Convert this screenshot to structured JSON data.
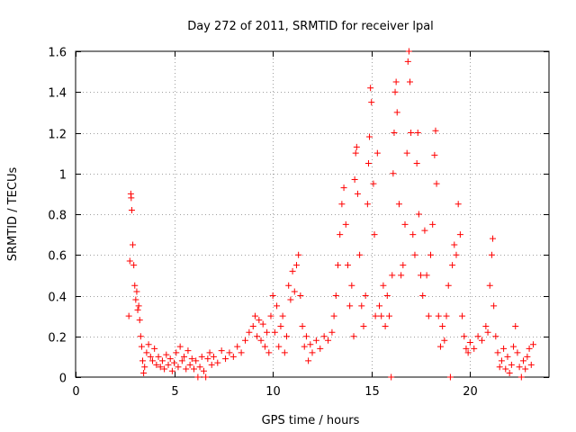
{
  "chart_data": {
    "type": "scatter",
    "title": "Day 272 of 2011, SRMTID for receiver lpal",
    "xlabel": "GPS time / hours",
    "ylabel": "SRMTID / TECUs",
    "xlim": [
      0,
      24
    ],
    "ylim": [
      0,
      1.6
    ],
    "x_ticks": [
      0,
      5,
      10,
      15,
      20
    ],
    "x_tick_labels": [
      "0",
      "5",
      "10",
      "15",
      "20"
    ],
    "y_ticks": [
      0,
      0.2,
      0.4,
      0.6,
      0.8,
      1.0,
      1.2,
      1.4,
      1.6
    ],
    "y_tick_labels": [
      "0",
      "0.2",
      "0.4",
      "0.6",
      "0.8",
      "1",
      "1.2",
      "1.4",
      "1.6"
    ],
    "grid": true,
    "marker": "+",
    "series": [
      {
        "name": "SRMTID",
        "color": "#ff0000",
        "points": [
          [
            2.7,
            0.3
          ],
          [
            2.75,
            0.57
          ],
          [
            2.8,
            0.9
          ],
          [
            2.82,
            0.88
          ],
          [
            2.85,
            0.82
          ],
          [
            2.9,
            0.65
          ],
          [
            2.95,
            0.55
          ],
          [
            3.0,
            0.45
          ],
          [
            3.05,
            0.38
          ],
          [
            3.1,
            0.42
          ],
          [
            3.15,
            0.33
          ],
          [
            3.2,
            0.35
          ],
          [
            3.25,
            0.28
          ],
          [
            3.3,
            0.2
          ],
          [
            3.35,
            0.15
          ],
          [
            3.4,
            0.08
          ],
          [
            3.45,
            0.02
          ],
          [
            3.5,
            0.05
          ],
          [
            3.6,
            0.12
          ],
          [
            3.7,
            0.16
          ],
          [
            3.8,
            0.1
          ],
          [
            3.9,
            0.08
          ],
          [
            4.0,
            0.14
          ],
          [
            4.1,
            0.06
          ],
          [
            4.2,
            0.1
          ],
          [
            4.3,
            0.05
          ],
          [
            4.4,
            0.08
          ],
          [
            4.5,
            0.04
          ],
          [
            4.6,
            0.11
          ],
          [
            4.7,
            0.06
          ],
          [
            4.8,
            0.09
          ],
          [
            4.9,
            0.03
          ],
          [
            5.0,
            0.07
          ],
          [
            5.1,
            0.12
          ],
          [
            5.2,
            0.05
          ],
          [
            5.3,
            0.15
          ],
          [
            5.4,
            0.08
          ],
          [
            5.5,
            0.1
          ],
          [
            5.6,
            0.04
          ],
          [
            5.7,
            0.13
          ],
          [
            5.8,
            0.06
          ],
          [
            5.9,
            0.09
          ],
          [
            6.0,
            0.04
          ],
          [
            6.1,
            0.08
          ],
          [
            6.2,
            0.0
          ],
          [
            6.3,
            0.05
          ],
          [
            6.4,
            0.1
          ],
          [
            6.5,
            0.03
          ],
          [
            6.6,
            0.0
          ],
          [
            6.7,
            0.09
          ],
          [
            6.8,
            0.12
          ],
          [
            6.9,
            0.06
          ],
          [
            7.0,
            0.1
          ],
          [
            7.2,
            0.07
          ],
          [
            7.4,
            0.13
          ],
          [
            7.6,
            0.09
          ],
          [
            7.8,
            0.12
          ],
          [
            8.0,
            0.1
          ],
          [
            8.2,
            0.15
          ],
          [
            8.4,
            0.12
          ],
          [
            8.6,
            0.18
          ],
          [
            8.8,
            0.22
          ],
          [
            9.0,
            0.25
          ],
          [
            9.1,
            0.3
          ],
          [
            9.2,
            0.2
          ],
          [
            9.3,
            0.28
          ],
          [
            9.4,
            0.18
          ],
          [
            9.5,
            0.26
          ],
          [
            9.6,
            0.15
          ],
          [
            9.7,
            0.22
          ],
          [
            9.8,
            0.12
          ],
          [
            9.9,
            0.3
          ],
          [
            10.0,
            0.4
          ],
          [
            10.1,
            0.22
          ],
          [
            10.2,
            0.35
          ],
          [
            10.3,
            0.15
          ],
          [
            10.4,
            0.25
          ],
          [
            10.5,
            0.3
          ],
          [
            10.6,
            0.12
          ],
          [
            10.7,
            0.2
          ],
          [
            10.8,
            0.45
          ],
          [
            10.9,
            0.38
          ],
          [
            11.0,
            0.52
          ],
          [
            11.1,
            0.42
          ],
          [
            11.2,
            0.55
          ],
          [
            11.3,
            0.6
          ],
          [
            11.4,
            0.4
          ],
          [
            11.5,
            0.25
          ],
          [
            11.6,
            0.15
          ],
          [
            11.7,
            0.2
          ],
          [
            11.8,
            0.08
          ],
          [
            11.9,
            0.16
          ],
          [
            12.0,
            0.12
          ],
          [
            12.2,
            0.18
          ],
          [
            12.4,
            0.14
          ],
          [
            12.6,
            0.2
          ],
          [
            12.8,
            0.18
          ],
          [
            13.0,
            0.22
          ],
          [
            13.1,
            0.3
          ],
          [
            13.2,
            0.4
          ],
          [
            13.3,
            0.55
          ],
          [
            13.4,
            0.7
          ],
          [
            13.5,
            0.85
          ],
          [
            13.6,
            0.93
          ],
          [
            13.7,
            0.75
          ],
          [
            13.8,
            0.55
          ],
          [
            13.9,
            0.35
          ],
          [
            14.0,
            0.45
          ],
          [
            14.1,
            0.2
          ],
          [
            14.15,
            0.97
          ],
          [
            14.2,
            1.1
          ],
          [
            14.25,
            1.13
          ],
          [
            14.3,
            0.9
          ],
          [
            14.4,
            0.6
          ],
          [
            14.5,
            0.35
          ],
          [
            14.6,
            0.25
          ],
          [
            14.7,
            0.4
          ],
          [
            14.8,
            0.85
          ],
          [
            14.85,
            1.05
          ],
          [
            14.9,
            1.18
          ],
          [
            14.95,
            1.42
          ],
          [
            15.0,
            1.35
          ],
          [
            15.1,
            0.95
          ],
          [
            15.15,
            0.7
          ],
          [
            15.2,
            0.3
          ],
          [
            15.3,
            1.1
          ],
          [
            15.4,
            0.35
          ],
          [
            15.5,
            0.3
          ],
          [
            15.6,
            0.45
          ],
          [
            15.7,
            0.25
          ],
          [
            15.8,
            0.4
          ],
          [
            15.9,
            0.3
          ],
          [
            16.0,
            0.0
          ],
          [
            16.05,
            0.5
          ],
          [
            16.1,
            1.0
          ],
          [
            16.15,
            1.2
          ],
          [
            16.2,
            1.4
          ],
          [
            16.25,
            1.45
          ],
          [
            16.3,
            1.3
          ],
          [
            16.4,
            0.85
          ],
          [
            16.5,
            0.5
          ],
          [
            16.6,
            0.55
          ],
          [
            16.7,
            0.75
          ],
          [
            16.8,
            1.1
          ],
          [
            16.85,
            1.55
          ],
          [
            16.9,
            1.6
          ],
          [
            16.95,
            1.45
          ],
          [
            17.0,
            1.2
          ],
          [
            17.1,
            0.7
          ],
          [
            17.2,
            0.6
          ],
          [
            17.3,
            1.05
          ],
          [
            17.35,
            1.2
          ],
          [
            17.4,
            0.8
          ],
          [
            17.5,
            0.5
          ],
          [
            17.6,
            0.4
          ],
          [
            17.7,
            0.72
          ],
          [
            17.8,
            0.5
          ],
          [
            17.9,
            0.3
          ],
          [
            18.0,
            0.6
          ],
          [
            18.1,
            0.75
          ],
          [
            18.2,
            1.09
          ],
          [
            18.25,
            1.21
          ],
          [
            18.3,
            0.95
          ],
          [
            18.4,
            0.3
          ],
          [
            18.5,
            0.15
          ],
          [
            18.6,
            0.25
          ],
          [
            18.7,
            0.18
          ],
          [
            18.8,
            0.3
          ],
          [
            18.9,
            0.45
          ],
          [
            19.0,
            0.0
          ],
          [
            19.1,
            0.55
          ],
          [
            19.2,
            0.65
          ],
          [
            19.3,
            0.6
          ],
          [
            19.4,
            0.85
          ],
          [
            19.5,
            0.7
          ],
          [
            19.6,
            0.3
          ],
          [
            19.7,
            0.2
          ],
          [
            19.8,
            0.14
          ],
          [
            19.9,
            0.12
          ],
          [
            20.0,
            0.17
          ],
          [
            20.2,
            0.14
          ],
          [
            20.4,
            0.2
          ],
          [
            20.6,
            0.18
          ],
          [
            20.8,
            0.25
          ],
          [
            20.9,
            0.22
          ],
          [
            21.0,
            0.45
          ],
          [
            21.1,
            0.6
          ],
          [
            21.15,
            0.68
          ],
          [
            21.2,
            0.35
          ],
          [
            21.3,
            0.2
          ],
          [
            21.4,
            0.12
          ],
          [
            21.5,
            0.05
          ],
          [
            21.6,
            0.08
          ],
          [
            21.7,
            0.14
          ],
          [
            21.8,
            0.04
          ],
          [
            21.9,
            0.1
          ],
          [
            22.0,
            0.02
          ],
          [
            22.1,
            0.06
          ],
          [
            22.2,
            0.15
          ],
          [
            22.3,
            0.25
          ],
          [
            22.4,
            0.12
          ],
          [
            22.5,
            0.05
          ],
          [
            22.6,
            0.0
          ],
          [
            22.7,
            0.08
          ],
          [
            22.8,
            0.04
          ],
          [
            22.9,
            0.1
          ],
          [
            23.0,
            0.14
          ],
          [
            23.1,
            0.06
          ],
          [
            23.2,
            0.16
          ]
        ]
      }
    ]
  }
}
